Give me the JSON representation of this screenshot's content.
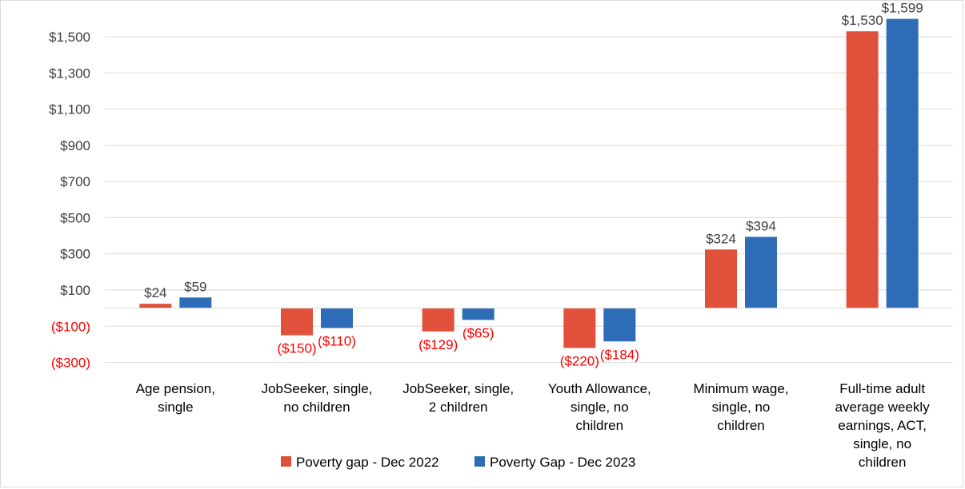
{
  "chart_data": {
    "type": "bar",
    "title": "",
    "xlabel": "",
    "ylabel": "",
    "categories": [
      [
        "Age pension,",
        "single"
      ],
      [
        "JobSeeker, single,",
        "no children"
      ],
      [
        "JobSeeker, single,",
        "2 children"
      ],
      [
        "Youth Allowance,",
        "single, no",
        "children"
      ],
      [
        "Minimum wage,",
        "single, no",
        "children"
      ],
      [
        "Full-time adult",
        "average weekly",
        "earnings, ACT,",
        "single, no",
        "children"
      ]
    ],
    "series": [
      {
        "name": "Poverty gap - Dec 2022",
        "color": "#E0503A",
        "values": [
          24,
          -150,
          -129,
          -220,
          324,
          1530
        ],
        "labels": [
          "$24",
          "($150)",
          "($129)",
          "($220)",
          "$324",
          "$1,530"
        ]
      },
      {
        "name": "Poverty Gap - Dec 2023",
        "color": "#2E6CB8",
        "values": [
          59,
          -110,
          -65,
          -184,
          394,
          1599
        ],
        "labels": [
          "$59",
          "($110)",
          "($65)",
          "($184)",
          "$394",
          "$1,599"
        ]
      }
    ],
    "ylim": [
      -300,
      1600
    ],
    "yticks": [
      1500,
      1300,
      1100,
      900,
      700,
      500,
      300,
      100,
      -100,
      -300
    ],
    "ytick_labels": [
      "$1,500",
      "$1,300",
      "$1,100",
      "$900",
      "$700",
      "$500",
      "$300",
      "$100",
      "($100)",
      "($300)"
    ],
    "positive_label_color": "#404040",
    "negative_label_color": "#FF0000",
    "gridlines": true,
    "legend_position": "bottom-center"
  }
}
